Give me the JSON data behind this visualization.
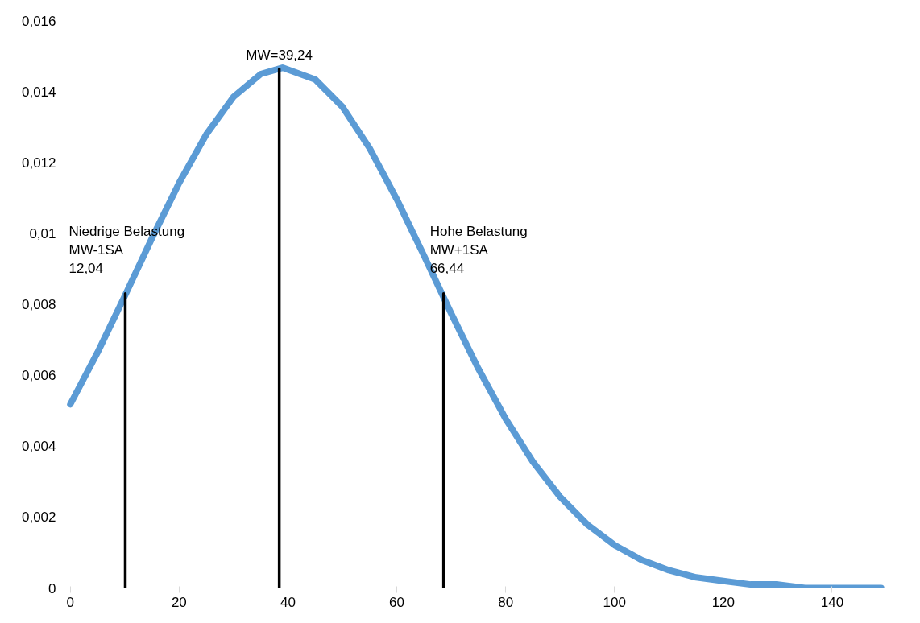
{
  "chart_data": {
    "type": "line",
    "xlim": [
      -1,
      150
    ],
    "ylim": [
      0,
      0.016
    ],
    "xticks": [
      0,
      20,
      40,
      60,
      80,
      100,
      120,
      140
    ],
    "yticks": [
      0,
      {
        "value": 0.002,
        "label": "0,002"
      },
      {
        "value": 0.004,
        "label": "0,004"
      },
      {
        "value": 0.006,
        "label": "0,006"
      },
      {
        "value": 0.008,
        "label": "0,008"
      },
      {
        "value": 0.01,
        "label": "0,01"
      },
      {
        "value": 0.012,
        "label": "0,012"
      },
      {
        "value": 0.014,
        "label": "0,014"
      },
      {
        "value": 0.016,
        "label": "0,016"
      }
    ],
    "grid": false,
    "marker": "none",
    "line_style": "solid",
    "series": [
      {
        "color": "#5b9bd5",
        "x": [
          0,
          5,
          10,
          15,
          20,
          25,
          30,
          35,
          39,
          45,
          50,
          55,
          60,
          65,
          70,
          75,
          80,
          85,
          90,
          95,
          100,
          105,
          110,
          115,
          120,
          125,
          130,
          135,
          140,
          145,
          149
        ],
        "values": [
          0.00518,
          0.00664,
          0.00823,
          0.00986,
          0.01142,
          0.01279,
          0.01385,
          0.01449,
          0.01467,
          0.01434,
          0.01357,
          0.0124,
          0.01096,
          0.00937,
          0.00774,
          0.00618,
          0.00477,
          0.00356,
          0.00257,
          0.00179,
          0.00121,
          0.00079,
          0.0005,
          0.0003,
          0.0002,
          0.0001,
          0.0001,
          0,
          0,
          0,
          0
        ]
      },
      {
        "color": "#000000",
        "x": [
          10.1,
          10.1
        ],
        "values": [
          0,
          0.0083
        ]
      },
      {
        "color": "#000000",
        "x": [
          38.4,
          38.4
        ],
        "values": [
          0,
          0.01463
        ]
      },
      {
        "color": "#000000",
        "x": [
          68.6,
          68.6
        ],
        "values": [
          0,
          0.0083
        ]
      }
    ],
    "annotations": [
      {
        "text": "Niedrige Belastung\nMW-1SA\n12,04",
        "x": 10.1,
        "y": 0.0083
      },
      {
        "text": "MW=39,24",
        "x": 38.4,
        "y": 0.01463
      },
      {
        "text": "Hohe Belastung\nMW+1SA\n66,44",
        "x": 68.6,
        "y": 0.0083
      }
    ]
  }
}
